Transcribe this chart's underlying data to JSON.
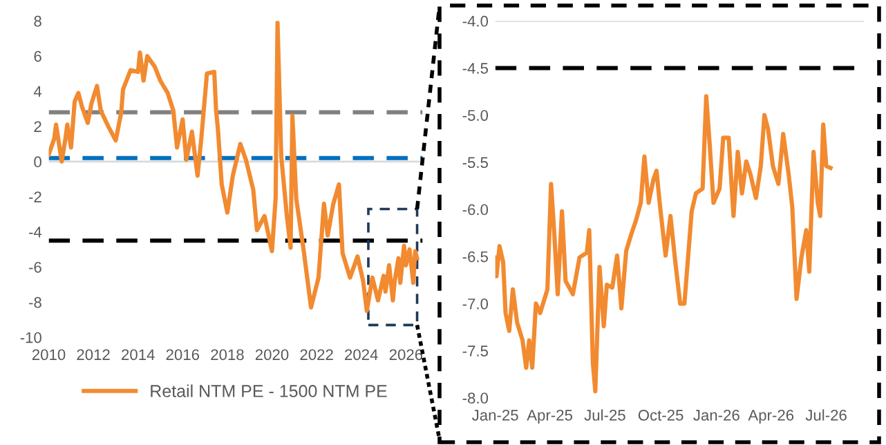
{
  "chart_data": [
    {
      "type": "line",
      "legend": "bottom",
      "xlim": [
        "2010-01-01",
        "2026-10-01"
      ],
      "ylim": [
        -10,
        8
      ],
      "xticks": [
        {
          "value": "2010-01-01",
          "label": "2010"
        },
        {
          "value": "2012-01-01",
          "label": "2012"
        },
        {
          "value": "2014-01-01",
          "label": "2014"
        },
        {
          "value": "2016-01-01",
          "label": "2016"
        },
        {
          "value": "2018-01-01",
          "label": "2018"
        },
        {
          "value": "2020-01-01",
          "label": "2020"
        },
        {
          "value": "2022-01-01",
          "label": "2022"
        },
        {
          "value": "2024-01-01",
          "label": "2024"
        },
        {
          "value": "2026-01-01",
          "label": "2026"
        }
      ],
      "yticks": [
        8,
        6,
        4,
        2,
        0,
        -2,
        -4,
        -6,
        -8,
        -10
      ],
      "ref_lines": [
        {
          "axis": "y",
          "value": 0,
          "color": "#d9d9d9",
          "line_style": "solid"
        },
        {
          "axis": "y",
          "value": 2.8,
          "color": "#808080",
          "line_style": "dashed"
        },
        {
          "axis": "y",
          "value": 0.2,
          "color": "#0070c0",
          "line_style": "dashed"
        },
        {
          "axis": "y",
          "value": -4.5,
          "color": "#000000",
          "line_style": "dashed"
        }
      ],
      "series": [
        {
          "name": "Retail NTM PE - 1500 NTM PE",
          "color": "#f28a30",
          "x": [
            "2010-01",
            "2010-04",
            "2010-05",
            "2010-08",
            "2010-10",
            "2010-11",
            "2011-01",
            "2011-03",
            "2011-05",
            "2011-07",
            "2011-10",
            "2011-12",
            "2012-03",
            "2012-05",
            "2012-09",
            "2013-01",
            "2013-04",
            "2013-05",
            "2013-09",
            "2014-01",
            "2014-02",
            "2014-04",
            "2014-06",
            "2014-10",
            "2015-01",
            "2015-05",
            "2015-08",
            "2015-10",
            "2016-01",
            "2016-03",
            "2016-06",
            "2016-09",
            "2016-11",
            "2017-02",
            "2017-06",
            "2017-07",
            "2017-08",
            "2017-10",
            "2018-01",
            "2018-04",
            "2018-08",
            "2018-11",
            "2019-03",
            "2019-05",
            "2019-09",
            "2020-01",
            "2020-03",
            "2020-04",
            "2020-06",
            "2020-09",
            "2020-11",
            "2020-12",
            "2021-02",
            "2021-06",
            "2021-10",
            "2022-02",
            "2022-05",
            "2022-07",
            "2022-10",
            "2023-01",
            "2023-03",
            "2023-07",
            "2023-11",
            "2024-02",
            "2024-04",
            "2024-07",
            "2024-10",
            "2025-01",
            "2025-02",
            "2025-04",
            "2025-05",
            "2025-06",
            "2025-07",
            "2025-09",
            "2025-10",
            "2025-12",
            "2026-01",
            "2026-03",
            "2026-05",
            "2026-06",
            "2026-07"
          ],
          "values": [
            0.4,
            1.3,
            2.1,
            0,
            1.3,
            2.1,
            0.8,
            3.4,
            3.9,
            3.1,
            2.2,
            3.3,
            4.3,
            2.9,
            2.0,
            1.2,
            2.8,
            4.1,
            5.2,
            5.1,
            6.2,
            4.6,
            6.0,
            5.4,
            4.6,
            3.9,
            2.9,
            0.8,
            2.4,
            0.1,
            1.7,
            -0.8,
            1.3,
            5.0,
            5.1,
            2.9,
            1.8,
            -1.3,
            -2.9,
            -0.8,
            1.0,
            0.1,
            -1.6,
            -3.9,
            -3.1,
            -5.1,
            -2.1,
            7.9,
            0.3,
            -3.1,
            -4.9,
            2.6,
            -2.1,
            -5.0,
            -8.3,
            -6.6,
            -2.4,
            -4.2,
            -2.4,
            -1.3,
            -5.2,
            -6.6,
            -5.4,
            -6.8,
            -8.5,
            -6.6,
            -7.9,
            -6.5,
            -7.4,
            -5.9,
            -6.9,
            -7.9,
            -6.8,
            -5.5,
            -6.9,
            -4.8,
            -5.9,
            -5.0,
            -6.9,
            -5.1,
            -5.5
          ]
        }
      ]
    },
    {
      "type": "line",
      "xlim": [
        "2025-01-01",
        "2026-09-01"
      ],
      "ylim": [
        -8,
        -4
      ],
      "xticks": [
        {
          "value": "2025-01-01",
          "label": "Jan-25"
        },
        {
          "value": "2025-04-01",
          "label": "Apr-25"
        },
        {
          "value": "2025-07-01",
          "label": "Jul-25"
        },
        {
          "value": "2025-10-01",
          "label": "Oct-25"
        },
        {
          "value": "2026-01-01",
          "label": "Jan-26"
        },
        {
          "value": "2026-04-01",
          "label": "Apr-26"
        },
        {
          "value": "2026-07-01",
          "label": "Jul-26"
        }
      ],
      "yticks": [
        {
          "value": -4,
          "label": "-4.0"
        },
        {
          "value": -4.5,
          "label": "-4.5"
        },
        {
          "value": -5,
          "label": "-5.0"
        },
        {
          "value": -5.5,
          "label": "-5.5"
        },
        {
          "value": -6,
          "label": "-6.0"
        },
        {
          "value": -6.5,
          "label": "-6.5"
        },
        {
          "value": -7,
          "label": "-7.0"
        },
        {
          "value": -7.5,
          "label": "-7.5"
        },
        {
          "value": -8,
          "label": "-8.0"
        }
      ],
      "ref_lines": [
        {
          "axis": "y",
          "value": -4,
          "color": "#d9d9d9",
          "line_style": "solid"
        },
        {
          "axis": "y",
          "value": -4.5,
          "color": "#000000",
          "line_style": "dashed"
        }
      ],
      "series": [
        {
          "color": "#f28a30",
          "x": [
            "2025-01-01",
            "2025-01-03",
            "2025-01-08",
            "2025-01-14",
            "2025-01-18",
            "2025-01-24",
            "2025-01-30",
            "2025-02-06",
            "2025-02-15",
            "2025-02-21",
            "2025-02-26",
            "2025-03-03",
            "2025-03-09",
            "2025-03-16",
            "2025-03-28",
            "2025-04-03",
            "2025-04-08",
            "2025-04-14",
            "2025-04-21",
            "2025-04-27",
            "2025-05-09",
            "2025-05-20",
            "2025-06-01",
            "2025-06-05",
            "2025-06-11",
            "2025-06-15",
            "2025-06-22",
            "2025-06-29",
            "2025-07-04",
            "2025-07-13",
            "2025-07-21",
            "2025-07-28",
            "2025-08-05",
            "2025-08-13",
            "2025-08-21",
            "2025-08-29",
            "2025-09-04",
            "2025-09-11",
            "2025-09-19",
            "2025-09-24",
            "2025-09-30",
            "2025-10-09",
            "2025-10-17",
            "2025-10-25",
            "2025-11-02",
            "2025-11-09",
            "2025-11-21",
            "2025-11-28",
            "2025-12-09",
            "2025-12-15",
            "2025-12-21",
            "2025-12-27",
            "2026-01-06",
            "2026-01-12",
            "2026-01-21",
            "2026-01-29",
            "2026-02-05",
            "2026-02-12",
            "2026-02-19",
            "2026-02-26",
            "2026-03-07",
            "2026-03-15",
            "2026-03-21",
            "2026-03-27",
            "2026-04-04",
            "2026-04-13",
            "2026-04-21",
            "2026-04-30",
            "2026-05-06",
            "2026-05-13",
            "2026-05-21",
            "2026-05-29",
            "2026-06-03",
            "2026-06-10",
            "2026-06-17",
            "2026-06-21",
            "2026-06-26",
            "2026-07-01",
            "2026-07-08"
          ],
          "values": [
            -6.51,
            -6.71,
            -6.39,
            -6.56,
            -7.1,
            -7.29,
            -6.85,
            -7.2,
            -7.39,
            -7.68,
            -7.39,
            -7.68,
            -7.0,
            -7.1,
            -6.85,
            -5.73,
            -6.22,
            -6.9,
            -6.02,
            -6.76,
            -6.9,
            -6.51,
            -6.46,
            -6.22,
            -7.63,
            -7.93,
            -6.61,
            -7.24,
            -6.8,
            -6.83,
            -6.49,
            -7.05,
            -6.44,
            -6.27,
            -6.12,
            -5.93,
            -5.44,
            -5.93,
            -5.68,
            -5.59,
            -5.98,
            -6.49,
            -6.07,
            -6.56,
            -7.0,
            -7.0,
            -6.02,
            -5.83,
            -5.78,
            -4.8,
            -5.34,
            -5.93,
            -5.78,
            -5.24,
            -5.24,
            -6.07,
            -5.39,
            -5.83,
            -5.49,
            -5.63,
            -5.88,
            -5.54,
            -5.0,
            -5.15,
            -5.54,
            -5.73,
            -5.2,
            -5.63,
            -5.98,
            -6.95,
            -6.51,
            -6.22,
            -6.66,
            -5.39,
            -5.93,
            -6.07,
            -5.1,
            -5.54,
            -5.56
          ]
        }
      ]
    }
  ]
}
